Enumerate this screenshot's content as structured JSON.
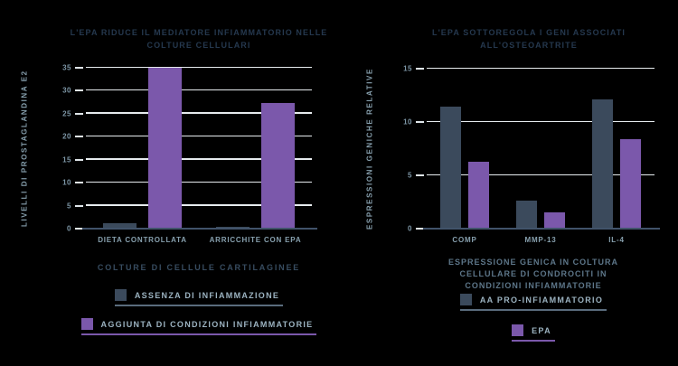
{
  "figure": {
    "background": "#000000",
    "grid_color": "#e6ebee",
    "baseline_color": "#41536a",
    "title_color": "#25384e",
    "tick_label_color": "#7d96a6",
    "legend_label_color": "#9cb3c1"
  },
  "chart_data": [
    {
      "type": "bar",
      "title": "L'EPA RIDUCE IL MEDIATORE INFIAMMATORIO NELLE COLTURE CELLULARI",
      "categories": [
        "DIETA CONTROLLATA",
        "ARRICCHITE CON EPA"
      ],
      "series": [
        {
          "name": "ASSENZA DI INFIAMMAZIONE",
          "color": "#3b4a5c",
          "underline_color": "#5a6c7d",
          "values": [
            1.2,
            0.4
          ]
        },
        {
          "name": "AGGIUNTA DI CONDIZIONI INFIAMMATORIE",
          "color": "#7b58ab",
          "underline_color": "#7b58ab",
          "values": [
            35,
            27.3
          ]
        }
      ],
      "xlabel": "COLTURE DI CELLULE CARTILAGINEE",
      "ylabel": "LIVELLI DI PROSTAGLANDINA E2",
      "ylim": [
        0,
        35
      ],
      "ytick_step": 5,
      "grid": true,
      "legend_position": "bottom"
    },
    {
      "type": "bar",
      "title": "L'EPA SOTTOREGOLA I GENI ASSOCIATI ALL'OSTEOARTRITE",
      "categories": [
        "COMP",
        "MMP-13",
        "IL-4"
      ],
      "series": [
        {
          "name": "AA PRO-INFIAMMATORIO",
          "color": "#3b4a5c",
          "underline_color": "#5a6c7d",
          "values": [
            11.4,
            2.6,
            12.1
          ]
        },
        {
          "name": "EPA",
          "color": "#7b58ab",
          "underline_color": "#7b58ab",
          "values": [
            6.3,
            1.5,
            8.4
          ]
        }
      ],
      "xlabel": "ESPRESSIONE GENICA IN COLTURA CELLULARE DI CONDROCITI IN CONDIZIONI INFIAMMATORIE",
      "ylabel": "ESPRESSIONI GENICHE RELATIVE",
      "ylim": [
        0,
        15
      ],
      "ytick_step": 5,
      "grid": true,
      "legend_position": "bottom"
    }
  ]
}
